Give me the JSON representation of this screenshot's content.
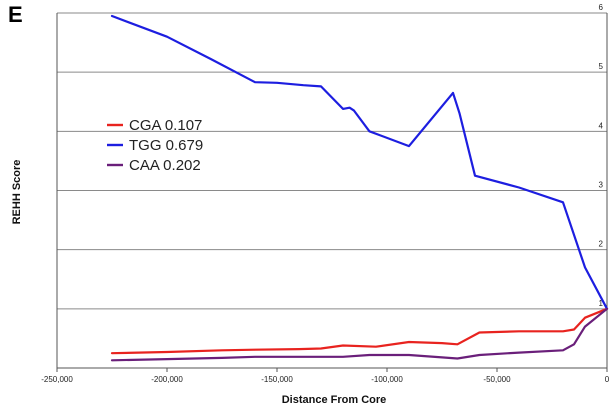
{
  "panel_label": "E",
  "chart_data": {
    "type": "line",
    "xlabel": "Distance From Core",
    "ylabel": "REHH Score",
    "xlim": [
      -250000,
      0
    ],
    "ylim": [
      0,
      6
    ],
    "x_ticks": [
      -250000,
      -200000,
      -150000,
      -100000,
      -50000,
      0
    ],
    "x_tick_labels": [
      "-250,000",
      "-200,000",
      "-150,000",
      "-100,000",
      "-50,000",
      "0"
    ],
    "y_ticks": [
      1,
      2,
      3,
      4,
      5,
      6
    ],
    "y_tick_labels": [
      "1",
      "2",
      "3",
      "4",
      "5",
      "6"
    ],
    "grid": "horizontal",
    "legend_position": "upper-left",
    "series": [
      {
        "name": "CGA 0.107",
        "color": "#e8231f",
        "x": [
          -225000,
          -200000,
          -175000,
          -160000,
          -140000,
          -130000,
          -120000,
          -105000,
          -90000,
          -75000,
          -68000,
          -58000,
          -40000,
          -20000,
          -15000,
          -10000,
          0
        ],
        "y": [
          0.25,
          0.27,
          0.3,
          0.31,
          0.32,
          0.33,
          0.38,
          0.36,
          0.44,
          0.42,
          0.4,
          0.6,
          0.62,
          0.62,
          0.65,
          0.85,
          1.0
        ]
      },
      {
        "name": "TGG 0.679",
        "color": "#1d1ee0",
        "x": [
          -225000,
          -200000,
          -180000,
          -160000,
          -150000,
          -138000,
          -130000,
          -120000,
          -117000,
          -115000,
          -108000,
          -90000,
          -70000,
          -67000,
          -60000,
          -40000,
          -20000,
          -10000,
          0
        ],
        "y": [
          5.95,
          5.6,
          5.22,
          4.83,
          4.82,
          4.78,
          4.76,
          4.38,
          4.4,
          4.35,
          4.0,
          3.75,
          4.65,
          4.3,
          3.25,
          3.05,
          2.8,
          1.7,
          1.0
        ]
      },
      {
        "name": "CAA 0.202",
        "color": "#6a1f7a",
        "x": [
          -225000,
          -200000,
          -175000,
          -160000,
          -140000,
          -130000,
          -120000,
          -108000,
          -90000,
          -75000,
          -68000,
          -58000,
          -40000,
          -20000,
          -15000,
          -10000,
          0
        ],
        "y": [
          0.13,
          0.15,
          0.17,
          0.19,
          0.19,
          0.19,
          0.19,
          0.22,
          0.22,
          0.18,
          0.16,
          0.22,
          0.26,
          0.3,
          0.4,
          0.7,
          1.0
        ]
      }
    ]
  }
}
